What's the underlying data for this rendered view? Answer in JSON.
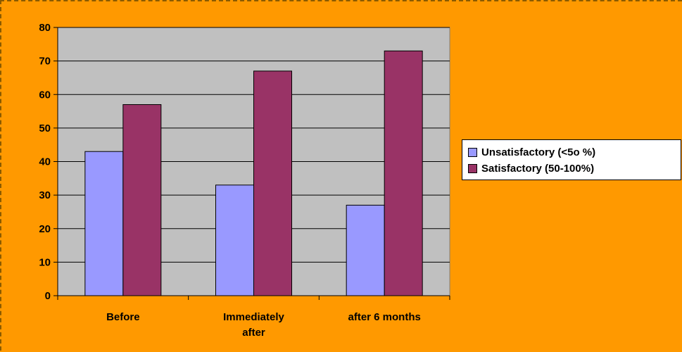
{
  "chart_data": {
    "type": "bar",
    "title": "",
    "xlabel": "",
    "ylabel": "",
    "categories": [
      "Before",
      "Immediately after",
      "after 6 months"
    ],
    "series": [
      {
        "name": "Unsatisfactory (<5o %)",
        "values": [
          43,
          33,
          27
        ],
        "color": "#9999ff"
      },
      {
        "name": "Satisfactory (50-100%)",
        "values": [
          57,
          67,
          73
        ],
        "color": "#993366"
      }
    ],
    "ylim": [
      0,
      80
    ],
    "yticks": [
      0,
      10,
      20,
      30,
      40,
      50,
      60,
      70,
      80
    ],
    "grid": true,
    "legend_position": "right",
    "plot_background": "#c0c0c0",
    "page_background": "#ff9900"
  }
}
